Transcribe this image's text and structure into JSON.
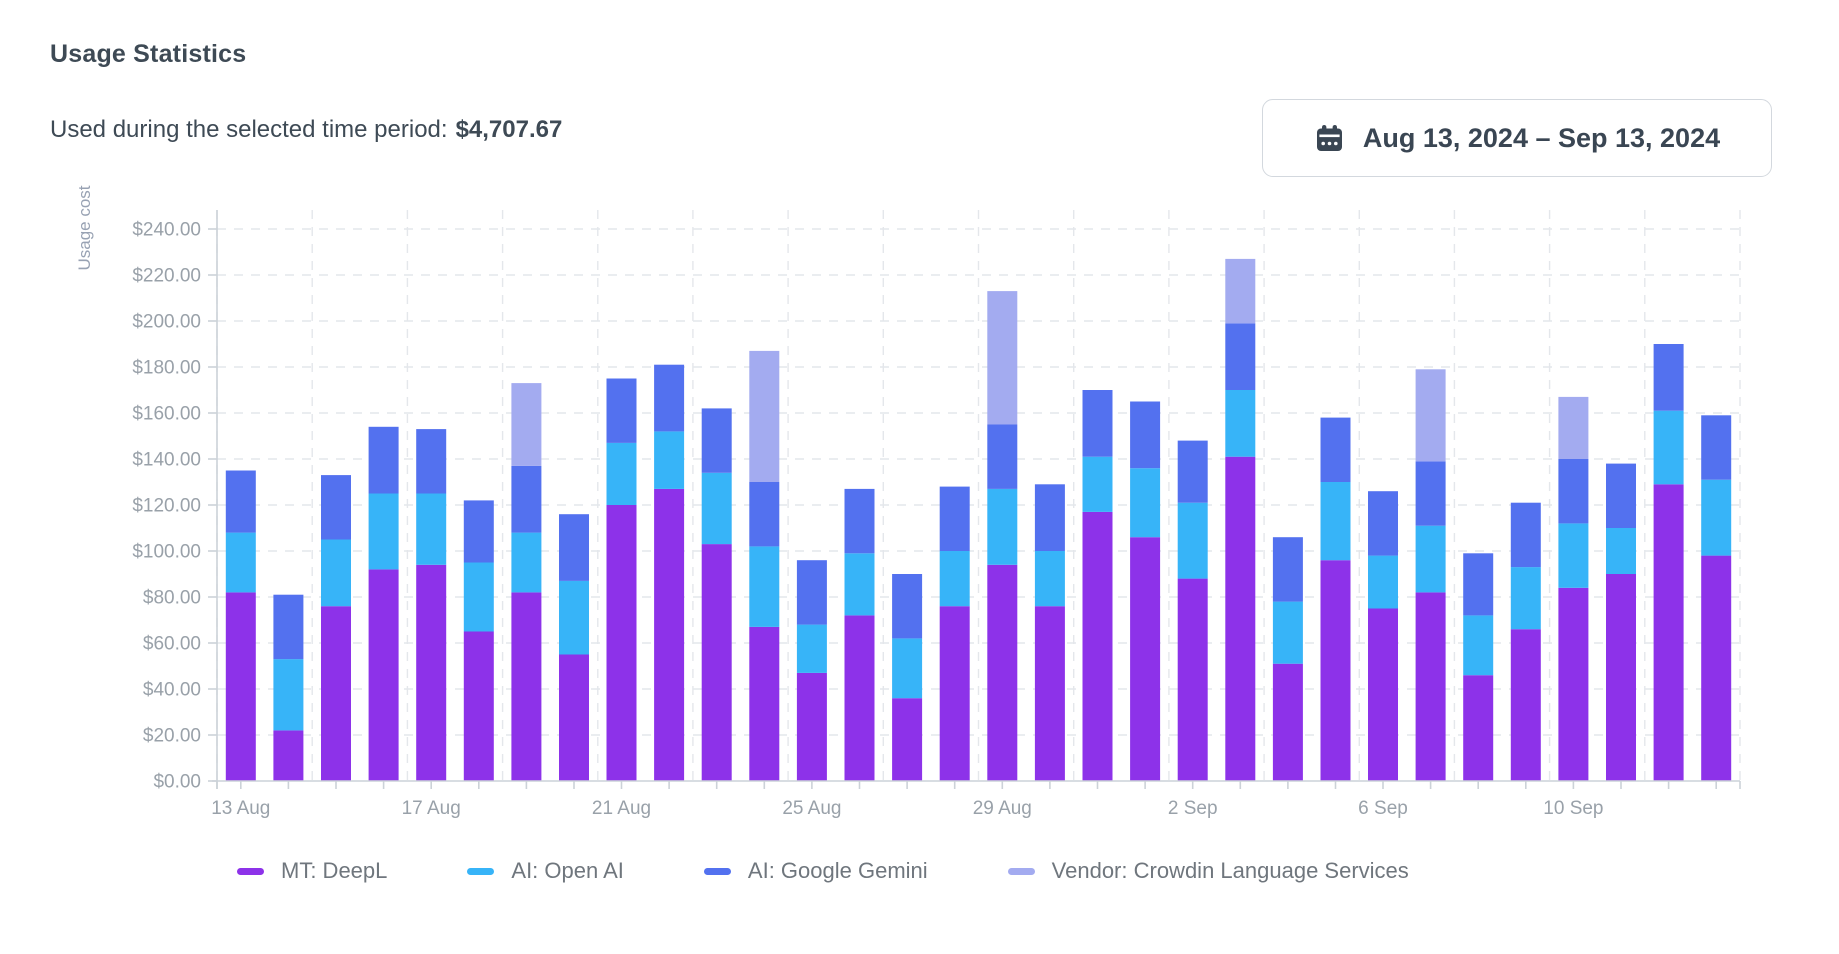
{
  "header": {
    "title": "Usage Statistics",
    "subtitle_label": "Used during the selected time period:",
    "subtitle_value": "$4,707.67",
    "date_range": "Aug 13, 2024 – Sep 13, 2024"
  },
  "colors": {
    "purple": "#8d32e9",
    "cyan": "#37b4f8",
    "blue": "#5371ef",
    "lavender": "#a3abf0",
    "axis_line": "#ccd2d8",
    "grid_line": "#e4e7eb",
    "tick_text": "#99a1a9",
    "heading_text": "#3e4a55",
    "legend_text": "#6f767d"
  },
  "chart_data": {
    "type": "bar",
    "stacked": true,
    "ylabel": "Usage cost",
    "ylim": [
      0,
      240
    ],
    "ytick_step": 20,
    "ytick_prefix": "$",
    "grid": true,
    "legend_position": "bottom",
    "categories": [
      "13 Aug",
      "14 Aug",
      "15 Aug",
      "16 Aug",
      "17 Aug",
      "18 Aug",
      "19 Aug",
      "20 Aug",
      "21 Aug",
      "22 Aug",
      "23 Aug",
      "24 Aug",
      "25 Aug",
      "26 Aug",
      "27 Aug",
      "28 Aug",
      "29 Aug",
      "30 Aug",
      "31 Aug",
      "1 Sep",
      "2 Sep",
      "3 Sep",
      "4 Sep",
      "5 Sep",
      "6 Sep",
      "7 Sep",
      "8 Sep",
      "9 Sep",
      "10 Sep",
      "11 Sep",
      "12 Sep",
      "13 Sep"
    ],
    "xtick_label_indices": [
      0,
      4,
      8,
      12,
      16,
      20,
      24,
      28
    ],
    "series": [
      {
        "name": "MT: DeepL",
        "color": "#8d32e9",
        "values": [
          82,
          22,
          76,
          92,
          94,
          65,
          82,
          55,
          120,
          127,
          103,
          67,
          47,
          72,
          36,
          76,
          94,
          76,
          117,
          106,
          88,
          141,
          51,
          96,
          75,
          82,
          46,
          66,
          84,
          90,
          129,
          98
        ]
      },
      {
        "name": "AI: Open AI",
        "color": "#37b4f8",
        "values": [
          26,
          31,
          29,
          33,
          31,
          30,
          26,
          32,
          27,
          25,
          31,
          35,
          21,
          27,
          26,
          24,
          33,
          24,
          24,
          30,
          33,
          29,
          27,
          34,
          23,
          29,
          26,
          27,
          28,
          20,
          32,
          33
        ]
      },
      {
        "name": "AI: Google Gemini",
        "color": "#5371ef",
        "values": [
          27,
          28,
          28,
          29,
          28,
          27,
          29,
          29,
          28,
          29,
          28,
          28,
          28,
          28,
          28,
          28,
          28,
          29,
          29,
          29,
          27,
          29,
          28,
          28,
          28,
          28,
          27,
          28,
          28,
          28,
          29,
          28
        ]
      },
      {
        "name": "Vendor: Crowdin Language Services",
        "color": "#a3abf0",
        "values": [
          0,
          0,
          0,
          0,
          0,
          0,
          36,
          0,
          0,
          0,
          0,
          57,
          0,
          0,
          0,
          0,
          58,
          0,
          0,
          0,
          0,
          28,
          0,
          0,
          0,
          40,
          0,
          0,
          27,
          0,
          0,
          0
        ]
      }
    ]
  }
}
